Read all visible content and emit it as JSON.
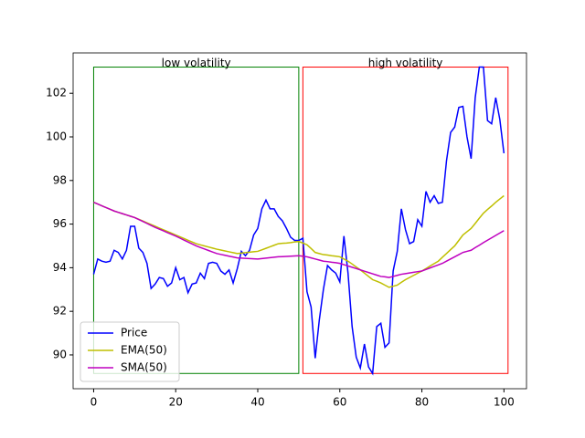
{
  "chart_data": {
    "type": "line",
    "x": [
      0,
      1,
      2,
      3,
      4,
      5,
      6,
      7,
      8,
      9,
      10,
      11,
      12,
      13,
      14,
      15,
      16,
      17,
      18,
      19,
      20,
      21,
      22,
      23,
      24,
      25,
      26,
      27,
      28,
      29,
      30,
      31,
      32,
      33,
      34,
      35,
      36,
      37,
      38,
      39,
      40,
      41,
      42,
      43,
      44,
      45,
      46,
      47,
      48,
      49,
      50,
      51,
      52,
      53,
      54,
      55,
      56,
      57,
      58,
      59,
      60,
      61,
      62,
      63,
      64,
      65,
      66,
      67,
      68,
      69,
      70,
      71,
      72,
      73,
      74,
      75,
      76,
      77,
      78,
      79,
      80,
      81,
      82,
      83,
      84,
      85,
      86,
      87,
      88,
      89,
      90,
      91,
      92,
      93,
      94,
      95,
      96,
      97,
      98,
      99,
      100
    ],
    "series": [
      {
        "name": "Price",
        "color": "#0000ff",
        "values": [
          93.7,
          94.4,
          94.3,
          94.25,
          94.3,
          94.8,
          94.7,
          94.4,
          94.8,
          95.9,
          95.9,
          94.9,
          94.7,
          94.2,
          93.05,
          93.25,
          93.55,
          93.5,
          93.15,
          93.3,
          94.0,
          93.45,
          93.55,
          92.85,
          93.25,
          93.3,
          93.75,
          93.5,
          94.2,
          94.25,
          94.2,
          93.85,
          93.7,
          93.9,
          93.3,
          93.95,
          94.75,
          94.55,
          94.8,
          95.5,
          95.8,
          96.7,
          97.1,
          96.7,
          96.7,
          96.35,
          96.15,
          95.8,
          95.4,
          95.25,
          95.25,
          95.35,
          92.9,
          92.2,
          89.85,
          91.6,
          93.0,
          94.1,
          93.9,
          93.75,
          93.35,
          95.45,
          93.75,
          91.3,
          89.9,
          89.4,
          90.5,
          89.45,
          89.15,
          91.3,
          91.45,
          90.35,
          90.55,
          93.85,
          94.75,
          96.7,
          95.75,
          95.1,
          95.2,
          96.2,
          95.9,
          97.5,
          97.0,
          97.3,
          96.95,
          97.0,
          98.9,
          100.2,
          100.45,
          101.35,
          101.4,
          100.0,
          99.0,
          101.8,
          103.2,
          103.2,
          100.75,
          100.6,
          101.8,
          100.8,
          99.25
        ]
      },
      {
        "name": "EMA(50)",
        "color": "#bfbf00",
        "values": [
          97.0,
          96.92,
          96.84,
          96.76,
          96.68,
          96.6,
          96.54,
          96.48,
          96.42,
          96.36,
          96.3,
          96.22,
          96.14,
          96.06,
          95.98,
          95.9,
          95.82,
          95.74,
          95.66,
          95.58,
          95.5,
          95.42,
          95.34,
          95.26,
          95.18,
          95.1,
          95.05,
          95.0,
          94.95,
          94.9,
          94.85,
          94.81,
          94.77,
          94.73,
          94.69,
          94.65,
          94.67,
          94.69,
          94.71,
          94.73,
          94.75,
          94.82,
          94.89,
          94.96,
          95.03,
          95.1,
          95.12,
          95.13,
          95.15,
          95.18,
          95.2,
          95.13,
          95.05,
          94.88,
          94.7,
          94.65,
          94.6,
          94.58,
          94.55,
          94.53,
          94.5,
          94.4,
          94.3,
          94.17,
          94.03,
          93.9,
          93.75,
          93.6,
          93.45,
          93.38,
          93.3,
          93.2,
          93.1,
          93.15,
          93.2,
          93.33,
          93.45,
          93.55,
          93.65,
          93.75,
          93.85,
          93.96,
          94.08,
          94.19,
          94.3,
          94.48,
          94.65,
          94.83,
          95.0,
          95.25,
          95.5,
          95.65,
          95.8,
          96.03,
          96.27,
          96.5,
          96.67,
          96.83,
          97.0,
          97.15,
          97.3
        ]
      },
      {
        "name": "SMA(50)",
        "color": "#bf00bf",
        "values": [
          97.0,
          96.92,
          96.84,
          96.76,
          96.68,
          96.6,
          96.54,
          96.48,
          96.42,
          96.36,
          96.3,
          96.21,
          96.12,
          96.03,
          95.94,
          95.85,
          95.77,
          95.69,
          95.61,
          95.53,
          95.45,
          95.36,
          95.27,
          95.18,
          95.09,
          95.0,
          94.93,
          94.86,
          94.79,
          94.72,
          94.65,
          94.61,
          94.57,
          94.53,
          94.49,
          94.45,
          94.44,
          94.43,
          94.42,
          94.41,
          94.4,
          94.42,
          94.44,
          94.46,
          94.48,
          94.5,
          94.51,
          94.52,
          94.53,
          94.54,
          94.55,
          94.53,
          94.5,
          94.45,
          94.4,
          94.35,
          94.3,
          94.28,
          94.25,
          94.23,
          94.2,
          94.14,
          94.08,
          94.02,
          93.96,
          93.9,
          93.84,
          93.78,
          93.72,
          93.66,
          93.6,
          93.58,
          93.55,
          93.6,
          93.65,
          93.7,
          93.73,
          93.76,
          93.79,
          93.82,
          93.85,
          93.92,
          93.99,
          94.06,
          94.13,
          94.2,
          94.3,
          94.4,
          94.5,
          94.6,
          94.7,
          94.75,
          94.8,
          94.92,
          95.03,
          95.15,
          95.26,
          95.37,
          95.48,
          95.59,
          95.7
        ]
      }
    ],
    "regions": [
      {
        "label": "low volatility",
        "x": [
          0,
          50
        ],
        "y": [
          89.15,
          103.2
        ],
        "color": "#008000"
      },
      {
        "label": "high volatility",
        "x": [
          51,
          101
        ],
        "y": [
          89.15,
          103.2
        ],
        "color": "#ff0000"
      }
    ],
    "xlim": [
      -5,
      105.5
    ],
    "ylim": [
      88.45,
      103.85
    ],
    "xticks": [
      0,
      20,
      40,
      60,
      80,
      100
    ],
    "yticks": [
      90,
      92,
      94,
      96,
      98,
      100,
      102
    ],
    "legend": "lower left"
  }
}
